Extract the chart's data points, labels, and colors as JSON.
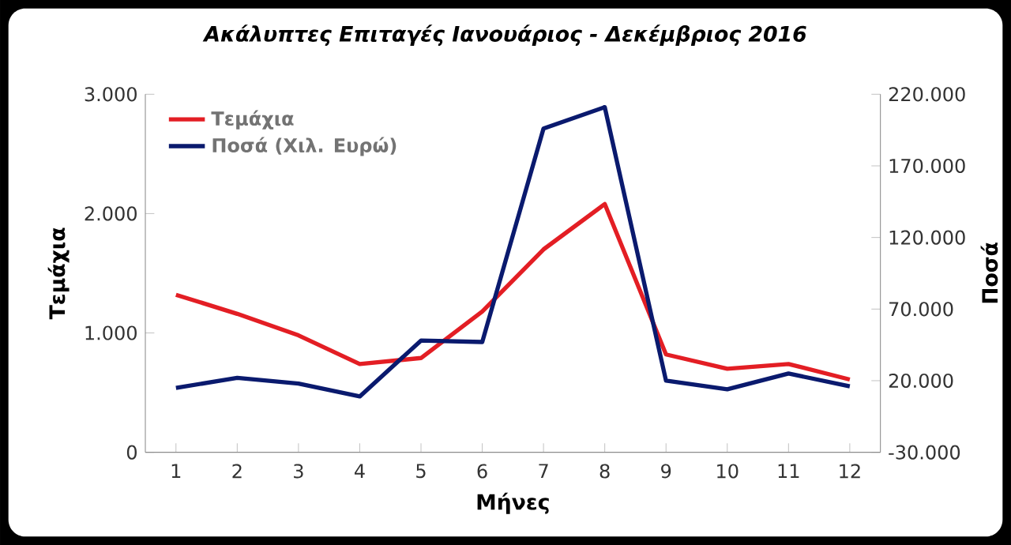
{
  "chart_data": {
    "type": "line",
    "title": "Ακάλυπτες Επιταγές Ιανουάριος - Δεκέμβριος 2016",
    "xlabel": "Μήνες",
    "ylabel": "Τεμάχια",
    "y2label": "Ποσά",
    "categories": [
      "1",
      "2",
      "3",
      "4",
      "5",
      "6",
      "7",
      "8",
      "9",
      "10",
      "11",
      "12"
    ],
    "series": [
      {
        "name": "Τεμάχια",
        "color": "#e31e24",
        "values": [
          1320,
          1160,
          980,
          740,
          790,
          1180,
          1700,
          2080,
          820,
          700,
          740,
          610
        ]
      },
      {
        "name": "Ποσά (Χιλ. Ευρώ)",
        "color": "#0a1a6e",
        "axis": "y2",
        "values": [
          15000,
          22000,
          18000,
          9000,
          48000,
          47000,
          196000,
          211000,
          20000,
          14000,
          25000,
          16000
        ]
      }
    ],
    "ylim": [
      0,
      3000
    ],
    "yticks": [
      0,
      {
        "value": 1000,
        "label": "1.000"
      },
      {
        "value": 2000,
        "label": "2.000"
      },
      {
        "value": 3000,
        "label": "3.000"
      }
    ],
    "y2lim": [
      -30000,
      220000
    ],
    "y2ticks": [
      {
        "value": -30000,
        "label": "-30.000"
      },
      {
        "value": 20000,
        "label": "20.000"
      },
      {
        "value": 70000,
        "label": "70.000"
      },
      {
        "value": 120000,
        "label": "120.000"
      },
      {
        "value": 170000,
        "label": "170.000"
      },
      {
        "value": 220000,
        "label": "220.000"
      }
    ],
    "legend": "top left",
    "line_style": "solid"
  }
}
